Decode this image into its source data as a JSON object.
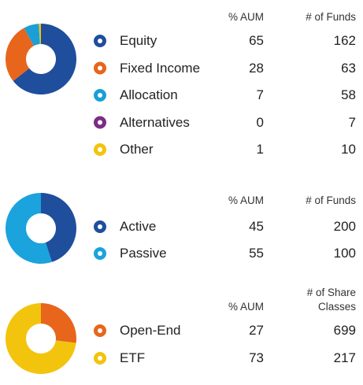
{
  "chart_data": [
    {
      "type": "donut",
      "columns": [
        "% AUM",
        "# of Funds"
      ],
      "categories": [
        "Equity",
        "Fixed Income",
        "Allocation",
        "Alternatives",
        "Other"
      ],
      "values": [
        65,
        28,
        7,
        0,
        1
      ],
      "counts": [
        162,
        63,
        58,
        7,
        10
      ],
      "colors": [
        "#1f4e9c",
        "#e8651c",
        "#1a9fd6",
        "#7b2d83",
        "#f2c40d"
      ]
    },
    {
      "type": "donut",
      "columns": [
        "% AUM",
        "# of Funds"
      ],
      "categories": [
        "Active",
        "Passive"
      ],
      "values": [
        45,
        55
      ],
      "counts": [
        200,
        100
      ],
      "colors": [
        "#1f4e9c",
        "#1aa3dc"
      ]
    },
    {
      "type": "donut",
      "columns": [
        "% AUM",
        "# of Share Classes"
      ],
      "categories": [
        "Open-End",
        "ETF"
      ],
      "values": [
        27,
        73
      ],
      "counts": [
        699,
        217
      ],
      "colors": [
        "#e8651c",
        "#f2c40d"
      ]
    }
  ]
}
